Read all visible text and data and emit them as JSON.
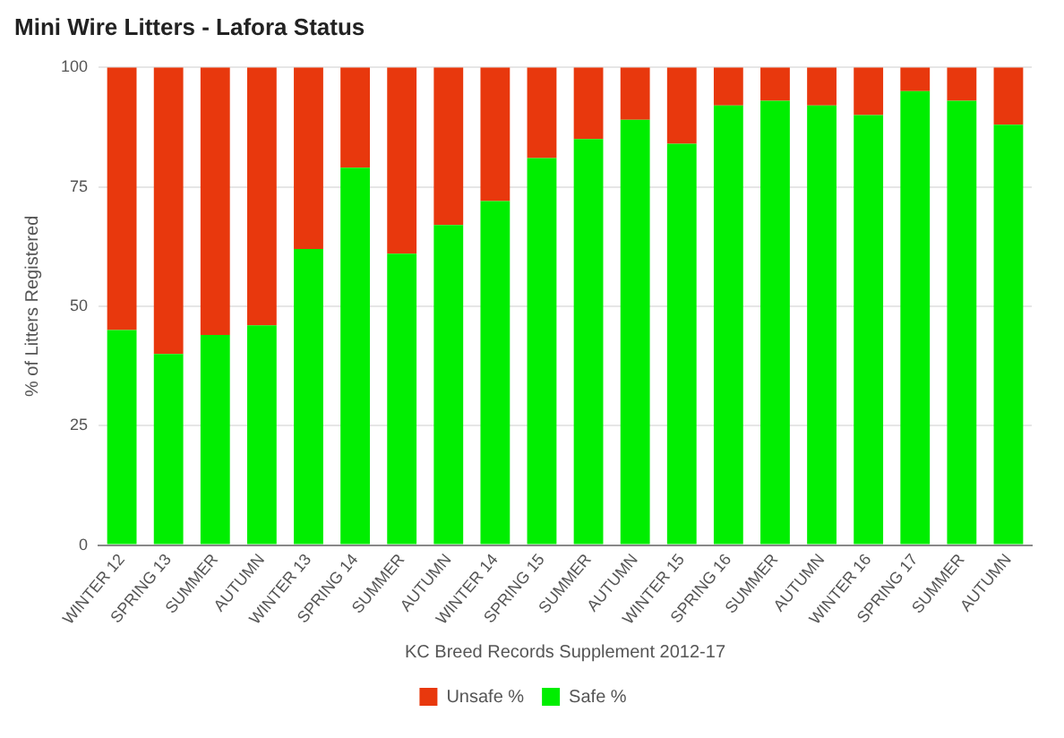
{
  "chart_data": {
    "type": "bar",
    "title": "Mini Wire Litters - Lafora Status",
    "xlabel": "KC Breed Records Supplement 2012-17",
    "ylabel": "% of Litters Registered",
    "categories": [
      "WINTER 12",
      "SPRING 13",
      "SUMMER",
      "AUTUMN",
      "WINTER 13",
      "SPRING 14",
      "SUMMER",
      "AUTUMN",
      "WINTER 14",
      "SPRING 15",
      "SUMMER",
      "AUTUMN",
      "WINTER 15",
      "SPRING 16",
      "SUMMER",
      "AUTUMN",
      "WINTER 16",
      "SPRING 17",
      "SUMMER",
      "AUTUMN"
    ],
    "series": [
      {
        "name": "Safe %",
        "color": "#00ee00",
        "values": [
          45,
          40,
          44,
          46,
          62,
          79,
          61,
          67,
          72,
          81,
          85,
          89,
          84,
          92,
          93,
          92,
          90,
          95,
          93,
          88
        ]
      },
      {
        "name": "Unsafe %",
        "color": "#e8380d",
        "values": [
          55,
          60,
          56,
          54,
          38,
          21,
          39,
          33,
          28,
          19,
          15,
          11,
          16,
          8,
          7,
          8,
          10,
          5,
          7,
          12
        ]
      }
    ],
    "stacked": true,
    "ylim": [
      0,
      100
    ],
    "yticks": [
      0,
      25,
      50,
      75,
      100
    ],
    "grid": "y",
    "legend": "bottom"
  }
}
